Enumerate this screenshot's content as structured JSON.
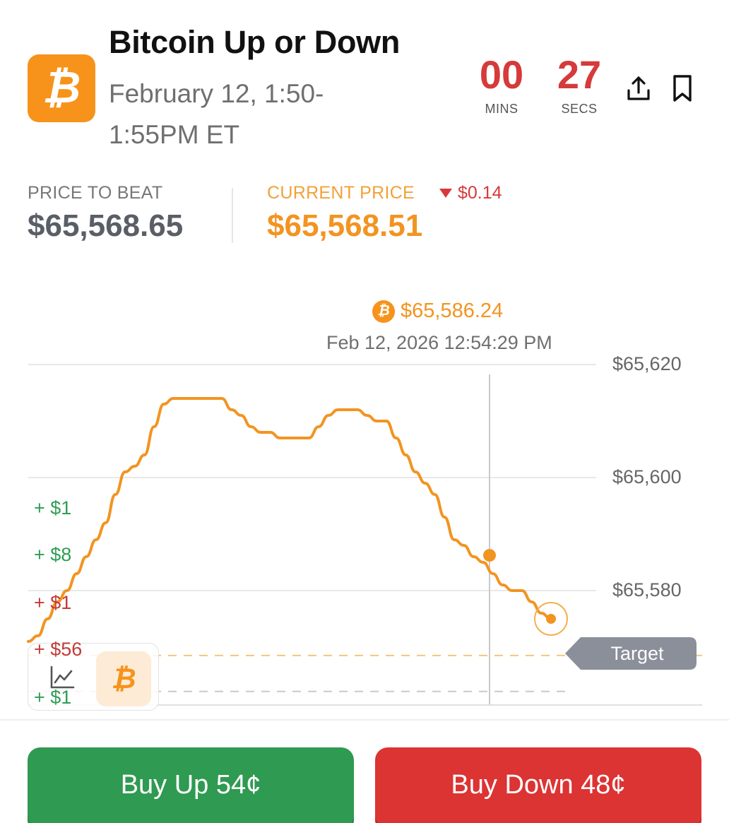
{
  "market": {
    "title": "Bitcoin Up or Down",
    "subtitle": "February 12, 1:50-1:55PM ET",
    "logo_glyph": "₿",
    "brand_color": "#F7931A"
  },
  "timer": {
    "mins_value": "00",
    "mins_label": "MINS",
    "secs_value": "27",
    "secs_label": "SECS"
  },
  "actions": {
    "share_icon": "share-icon",
    "bookmark_icon": "bookmark-icon"
  },
  "prices": {
    "beat_label": "PRICE TO BEAT",
    "beat_value": "$65,568.65",
    "current_label": "CURRENT PRICE",
    "current_value": "$65,568.51",
    "delta": "$0.14",
    "delta_direction": "down"
  },
  "hover": {
    "price": "$65,586.24",
    "timestamp": "Feb 12, 2026 12:54:29 PM"
  },
  "trade_tickers": [
    {
      "text": "+ $1",
      "side": "up"
    },
    {
      "text": "+ $8",
      "side": "up"
    },
    {
      "text": "+ $1",
      "side": "down"
    },
    {
      "text": "+ $56",
      "side": "down"
    },
    {
      "text": "+ $1",
      "side": "up"
    }
  ],
  "chart_data": {
    "type": "line",
    "y_axis_ticks": [
      "$65,620",
      "$65,600",
      "$65,580"
    ],
    "ylim": [
      65560,
      65620
    ],
    "target_label": "Target",
    "target_value": 65568.65,
    "series": [
      {
        "color": "#F29421",
        "values": [
          65571,
          65572,
          65575,
          65578,
          65580,
          65583,
          65586,
          65589,
          65592,
          65597,
          65601,
          65602,
          65604,
          65609,
          65613,
          65614,
          65614,
          65614,
          65614,
          65614,
          65614,
          65612,
          65611,
          65609,
          65608,
          65608,
          65607,
          65607,
          65607,
          65607,
          65609,
          65611,
          65612,
          65612,
          65612,
          65611,
          65610,
          65610,
          65607,
          65604,
          65601,
          65599,
          65597,
          65593,
          65589,
          65588,
          65586,
          65585,
          65583,
          65581,
          65580,
          65580,
          65578,
          65576,
          65575
        ]
      }
    ],
    "hover_value": 65586.24,
    "current_value": 65568.51
  },
  "mini_panel": {
    "chart_icon": "line-chart-icon",
    "btc_icon": "bitcoin-icon",
    "btc_glyph": "₿"
  },
  "buttons": {
    "buy_up": "Buy Up 54¢",
    "buy_down": "Buy Down 48¢"
  }
}
